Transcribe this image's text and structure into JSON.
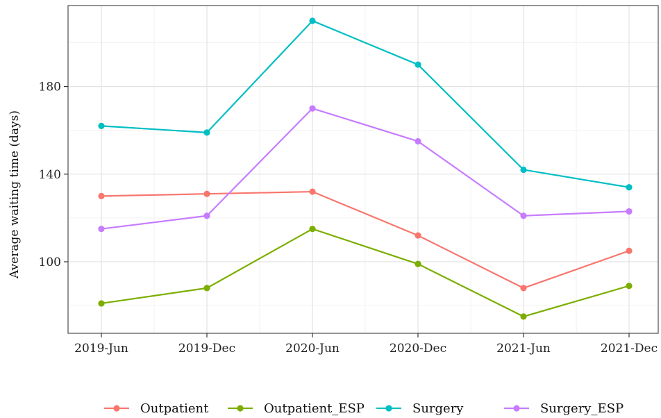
{
  "chart_data": {
    "type": "line",
    "title": "",
    "xlabel": "",
    "ylabel": "Average waiting time (days)",
    "categories": [
      "2019-Jun",
      "2019-Dec",
      "2020-Jun",
      "2020-Dec",
      "2021-Jun",
      "2021-Dec"
    ],
    "yticks": [
      100,
      140,
      180
    ],
    "ylim": [
      67,
      210
    ],
    "grid": true,
    "legend_position": "bottom",
    "series": [
      {
        "name": "Outpatient",
        "color": "#f8766d",
        "values": [
          130,
          131,
          132,
          112,
          88,
          105
        ]
      },
      {
        "name": "Outpatient_ESP",
        "color": "#7cae00",
        "values": [
          81,
          88,
          115,
          99,
          75,
          89
        ]
      },
      {
        "name": "Surgery",
        "color": "#00bfc4",
        "values": [
          162,
          159,
          210,
          190,
          142,
          134
        ]
      },
      {
        "name": "Surgery_ESP",
        "color": "#c77cff",
        "values": [
          115,
          121,
          170,
          155,
          121,
          123
        ]
      }
    ]
  }
}
